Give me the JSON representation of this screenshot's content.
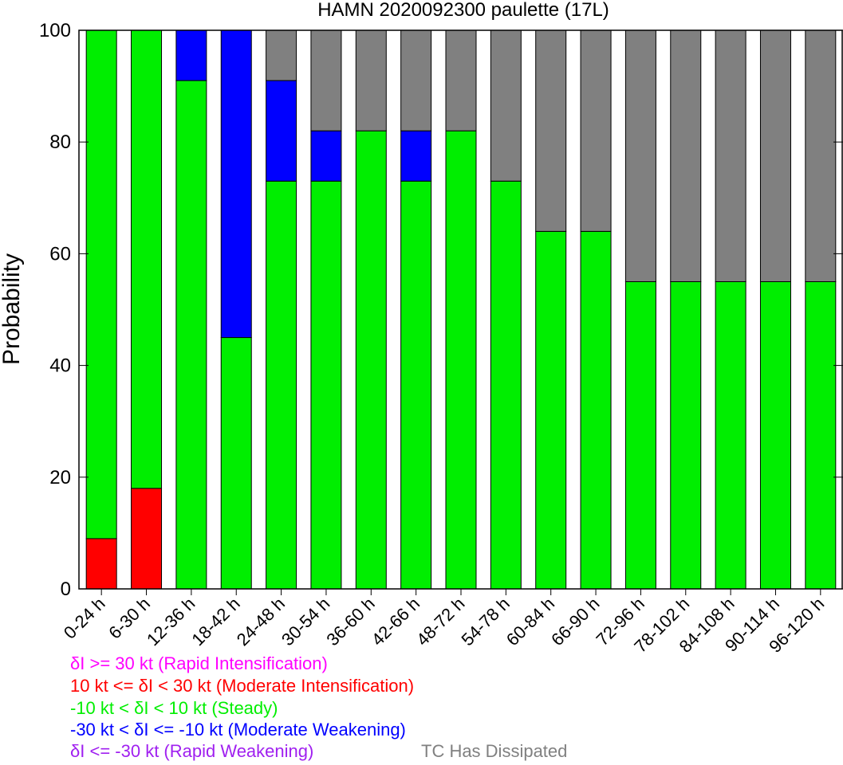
{
  "chart_data": {
    "type": "bar",
    "stacked": true,
    "title": "HAMN 2020092300 paulette (17L)",
    "ylabel": "Probability",
    "xlabel": "",
    "ylim": [
      0,
      100
    ],
    "yticks": [
      "0",
      "20",
      "40",
      "60",
      "80",
      "100"
    ],
    "categories": [
      "0-24 h",
      "6-30 h",
      "12-36 h",
      "18-42 h",
      "24-48 h",
      "30-54 h",
      "36-60 h",
      "42-66 h",
      "48-72 h",
      "54-78 h",
      "60-84 h",
      "66-90 h",
      "72-96 h",
      "78-102 h",
      "84-108 h",
      "90-114 h",
      "96-120 h"
    ],
    "series": [
      {
        "name": "δI >= 30 kt (Rapid Intensification)",
        "color": "#ff00ff",
        "values": [
          0,
          0,
          0,
          0,
          0,
          0,
          0,
          0,
          0,
          0,
          0,
          0,
          0,
          0,
          0,
          0,
          0
        ]
      },
      {
        "name": "10 kt <= δI < 30 kt (Moderate Intensification)",
        "color": "#ff0000",
        "values": [
          9,
          18,
          0,
          0,
          0,
          0,
          0,
          0,
          0,
          0,
          0,
          0,
          0,
          0,
          0,
          0,
          0
        ]
      },
      {
        "name": "-10 kt < δI < 10 kt (Steady)",
        "color": "#00ee00",
        "values": [
          91,
          82,
          91,
          45,
          73,
          73,
          82,
          73,
          82,
          73,
          64,
          64,
          55,
          55,
          55,
          55,
          55
        ]
      },
      {
        "name": "-30 kt < δI <= -10 kt (Moderate Weakening)",
        "color": "#0000ff",
        "values": [
          0,
          0,
          9,
          55,
          18,
          9,
          0,
          9,
          0,
          0,
          0,
          0,
          0,
          0,
          0,
          0,
          0
        ]
      },
      {
        "name": "δI <= -30 kt (Rapid Weakening)",
        "color": "#a020f0",
        "values": [
          0,
          0,
          0,
          0,
          0,
          0,
          0,
          0,
          0,
          0,
          0,
          0,
          0,
          0,
          0,
          0,
          0
        ]
      },
      {
        "name": "TC Has Dissipated",
        "color": "#808080",
        "values": [
          0,
          0,
          0,
          0,
          9,
          18,
          18,
          18,
          18,
          27,
          36,
          36,
          45,
          45,
          45,
          45,
          45
        ]
      }
    ],
    "grid": false,
    "legend_placement": "bottom"
  }
}
